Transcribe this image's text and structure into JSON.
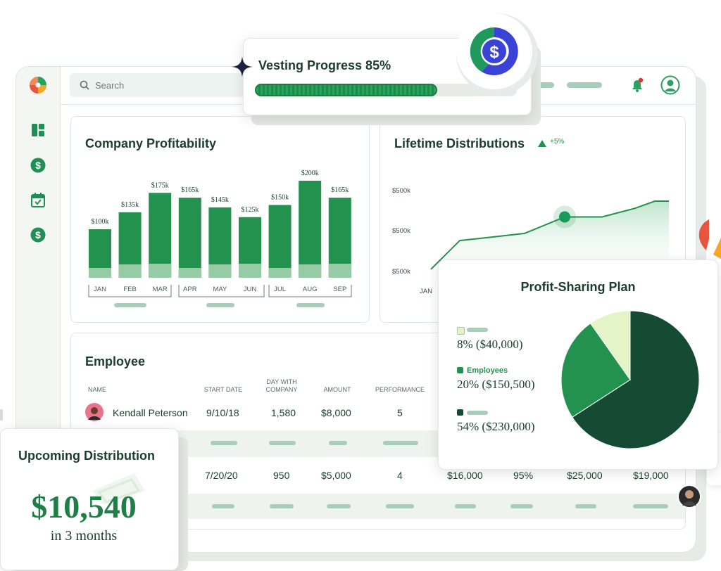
{
  "search": {
    "placeholder": "Search"
  },
  "vesting": {
    "title": "Vesting Progress 85%",
    "progress": 0.85
  },
  "profitability": {
    "title": "Company Profitability",
    "chart_data": {
      "type": "bar",
      "categories": [
        "JAN",
        "FEB",
        "MAR",
        "APR",
        "MAY",
        "JUN",
        "JUL",
        "AUG",
        "SEP"
      ],
      "values": [
        100,
        135,
        175,
        165,
        145,
        125,
        150,
        200,
        165
      ],
      "value_labels": [
        "$100k",
        "$135k",
        "$175k",
        "$165k",
        "$145k",
        "$125k",
        "$150k",
        "$200k",
        "$165k"
      ]
    }
  },
  "distributions": {
    "title": "Lifetime Distributions",
    "change": "+5%",
    "chart_data": {
      "type": "area",
      "ytick_labels": [
        "$500k",
        "$500k",
        "$500k"
      ],
      "xtick_labels": [
        "JAN"
      ],
      "values": [
        0.05,
        0.45,
        0.5,
        0.55,
        0.78,
        0.78,
        0.9,
        1.0,
        1.0
      ]
    }
  },
  "employee": {
    "title": "Employee",
    "columns": [
      "NAME",
      "START DATE",
      "DAY WITH COMPANY",
      "AMOUNT",
      "PERFORMANCE"
    ],
    "rows": [
      {
        "name": "Kendall Peterson",
        "start": "9/10/18",
        "days": "1,580",
        "amount": "$8,000",
        "performance": "5"
      },
      {
        "start": "7/20/20",
        "days": "950",
        "amount": "$5,000",
        "performance": "4",
        "extra1": "$16,000",
        "extra2": "95%",
        "extra3": "$25,000",
        "extra4": "$19,000"
      }
    ]
  },
  "profit_sharing": {
    "title": "Profit-Sharing Plan",
    "legend": [
      {
        "label": "",
        "value": "8% ($40,000)",
        "color": "#e3f5c6"
      },
      {
        "label": "Employees",
        "value": "20% ($150,500)",
        "color": "#23924f"
      },
      {
        "label": "",
        "value": "54% ($230,000)",
        "color": "#154a33"
      }
    ],
    "chart_data": {
      "type": "pie",
      "values": [
        8,
        20,
        54
      ],
      "colors": [
        "#e3f5c6",
        "#23924f",
        "#154a33"
      ]
    }
  },
  "upcoming": {
    "title": "Upcoming Distribution",
    "amount": "$10,540",
    "subtitle": "in 3 months"
  },
  "colors": {
    "accent": "#23924f",
    "dark": "#154a33",
    "pale": "#96cba6"
  }
}
